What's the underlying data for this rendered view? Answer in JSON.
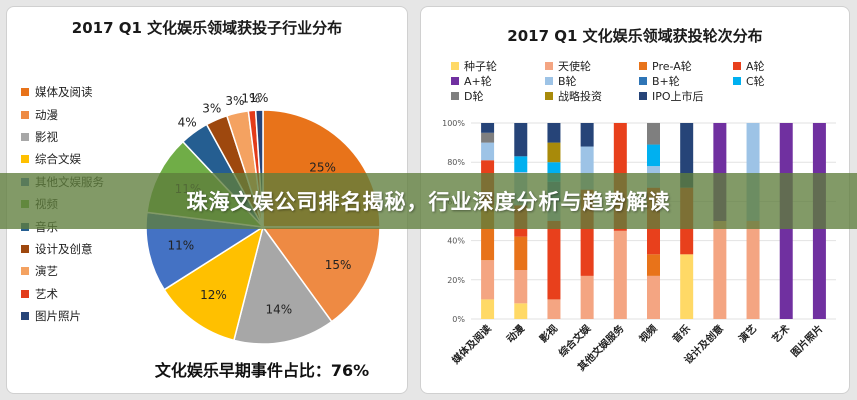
{
  "headline": "珠海文娱公司排名揭秘，行业深度分析与趋势解读",
  "footer": {
    "label": "文化娱乐早期事件占比：",
    "value": "76%"
  },
  "chart_data": [
    {
      "type": "pie",
      "title": "2017 Q1 文化娱乐领域获投子行业分布",
      "categories": [
        "媒体及阅读",
        "动漫",
        "影视",
        "综合文娱",
        "其他文娱服务",
        "视频",
        "音乐",
        "设计及创意",
        "演艺",
        "艺术",
        "图片照片"
      ],
      "values": [
        25,
        15,
        14,
        12,
        11,
        11,
        4,
        3,
        3,
        1,
        1
      ],
      "value_labels": [
        "25%",
        "15%",
        "14%",
        "12%",
        "11%",
        "11%",
        "4%",
        "3%",
        "3%",
        "1%",
        "1%"
      ],
      "colors": [
        "#e8731a",
        "#ee8a43",
        "#a7a7a7",
        "#ffc000",
        "#4472c4",
        "#70ad47",
        "#255e91",
        "#9e480e",
        "#f4a261",
        "#e23b1a",
        "#264478"
      ],
      "legend": "left"
    },
    {
      "type": "bar",
      "stacked": true,
      "title": "2017 Q1 文化娱乐领域获投轮次分布",
      "categories": [
        "媒体及阅读",
        "动漫",
        "影视",
        "综合文娱",
        "其他文娱服务",
        "视频",
        "音乐",
        "设计及创意",
        "演艺",
        "艺术",
        "图片照片"
      ],
      "ylim": [
        0,
        100
      ],
      "yticks": [
        "0%",
        "20%",
        "40%",
        "60%",
        "80%",
        "100%"
      ],
      "legend": "top",
      "series": [
        {
          "name": "种子轮",
          "color": "#ffd966",
          "values": [
            10,
            8,
            0,
            0,
            0,
            0,
            33,
            0,
            0,
            0,
            0
          ]
        },
        {
          "name": "天使轮",
          "color": "#f4a582",
          "values": [
            20,
            17,
            10,
            22,
            45,
            22,
            0,
            50,
            50,
            0,
            0
          ]
        },
        {
          "name": "Pre-A轮",
          "color": "#e8731a",
          "values": [
            28,
            17,
            0,
            0,
            0,
            11,
            0,
            0,
            0,
            0,
            0
          ]
        },
        {
          "name": "A轮",
          "color": "#e8401c",
          "values": [
            23,
            16,
            40,
            44,
            55,
            34,
            34,
            0,
            0,
            0,
            0
          ]
        },
        {
          "name": "A+轮",
          "color": "#7030a0",
          "values": [
            0,
            0,
            0,
            0,
            0,
            0,
            0,
            50,
            0,
            100,
            100
          ]
        },
        {
          "name": "B轮",
          "color": "#9dc3e6",
          "values": [
            9,
            17,
            10,
            22,
            0,
            11,
            0,
            0,
            50,
            0,
            0
          ]
        },
        {
          "name": "B+轮",
          "color": "#2e75b6",
          "values": [
            0,
            0,
            10,
            0,
            0,
            0,
            0,
            0,
            0,
            0,
            0
          ]
        },
        {
          "name": "C轮",
          "color": "#00b0f0",
          "values": [
            0,
            8,
            10,
            0,
            0,
            11,
            0,
            0,
            0,
            0,
            0
          ]
        },
        {
          "name": "D轮",
          "color": "#7f7f7f",
          "values": [
            5,
            0,
            0,
            0,
            0,
            11,
            0,
            0,
            0,
            0,
            0
          ]
        },
        {
          "name": "战略投资",
          "color": "#a88a0a",
          "values": [
            0,
            0,
            10,
            0,
            0,
            0,
            0,
            0,
            0,
            0,
            0
          ]
        },
        {
          "name": "IPO上市后",
          "color": "#264478",
          "values": [
            5,
            17,
            10,
            12,
            0,
            0,
            33,
            0,
            0,
            0,
            0
          ]
        }
      ]
    }
  ]
}
